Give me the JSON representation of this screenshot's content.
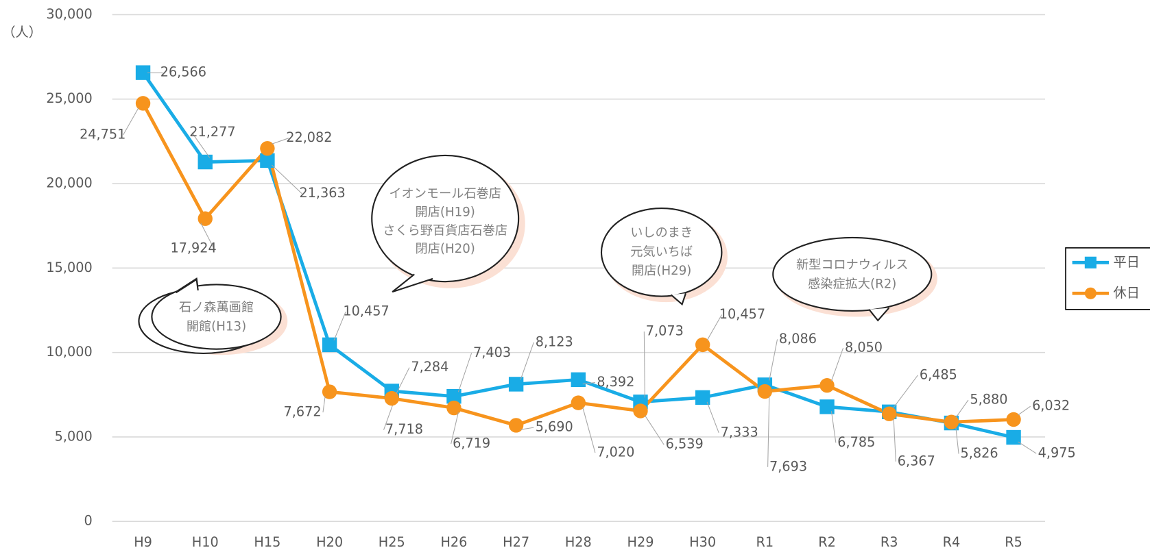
{
  "chart_data": {
    "type": "line",
    "y_label": "（人）",
    "categories": [
      "H9",
      "H10",
      "H15",
      "H20",
      "H25",
      "H26",
      "H27",
      "H28",
      "H29",
      "H30",
      "R1",
      "R2",
      "R3",
      "R4",
      "R5"
    ],
    "series": [
      {
        "name": "平日",
        "color": "#19ace6",
        "marker": "square",
        "values": [
          26566,
          21277,
          21363,
          10457,
          7718,
          7403,
          8123,
          8392,
          7073,
          7333,
          8086,
          6785,
          6485,
          5826,
          4975
        ],
        "value_labels": [
          "26,566",
          "21,277",
          "21,363",
          "10,457",
          "7,718",
          "7,403",
          "8,123",
          "8,392",
          "7,073",
          "7,333",
          "8,086",
          "6,785",
          "6,485",
          "5,826",
          "4,975"
        ]
      },
      {
        "name": "休日",
        "color": "#f7941d",
        "marker": "circle",
        "values": [
          24751,
          17924,
          22082,
          7672,
          7284,
          6719,
          5690,
          7020,
          6539,
          10457,
          7693,
          8050,
          6367,
          5880,
          6032
        ],
        "value_labels": [
          "24,751",
          "17,924",
          "22,082",
          "7,672",
          "7,284",
          "6,719",
          "5,690",
          "7,020",
          "6,539",
          "10,457",
          "7,693",
          "8,050",
          "6,367",
          "5,880",
          "6,032"
        ]
      }
    ],
    "ylim": [
      0,
      30000
    ],
    "yticks": [
      0,
      {
        "value": 5000,
        "label": "5,000"
      },
      {
        "value": 10000,
        "label": "10,000"
      },
      {
        "value": 15000,
        "label": "15,000"
      },
      {
        "value": 20000,
        "label": "20,000"
      },
      {
        "value": 25000,
        "label": "25,000"
      },
      {
        "value": 30000,
        "label": "30,000"
      }
    ],
    "grid": true,
    "legend": "right",
    "annotations": [
      [
        "石ノ森萬画館",
        "開館(H13)"
      ],
      [
        "イオンモール石巻店",
        "開店(H19)",
        "さくら野百貨店石巻店",
        "閉店(H20)"
      ],
      [
        "いしのまき",
        "元気いちば",
        "開店(H29)"
      ],
      [
        "新型コロナウィルス",
        "感染症拡大(R2)"
      ]
    ]
  }
}
